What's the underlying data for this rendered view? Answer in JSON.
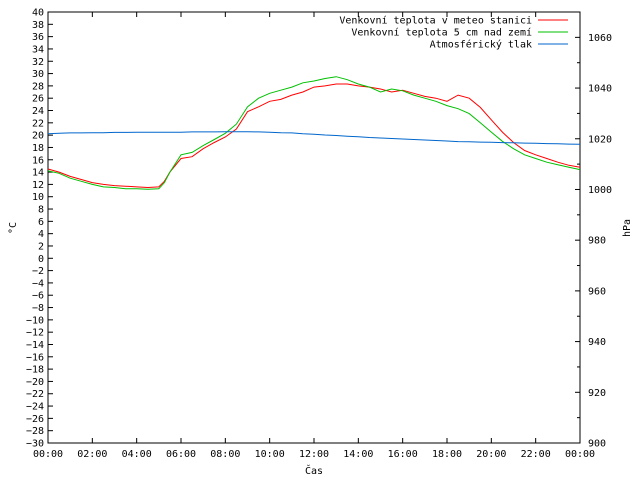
{
  "chart_data": {
    "type": "line",
    "title": "",
    "xlabel": "Čas",
    "ylabel_left": "°C",
    "ylabel_right": "hPa",
    "xlim": [
      "00:00",
      "24:00"
    ],
    "ylim_left": [
      -30,
      40
    ],
    "ylim_right": [
      900,
      1070
    ],
    "x_ticks": [
      "00:00",
      "02:00",
      "04:00",
      "06:00",
      "08:00",
      "10:00",
      "12:00",
      "14:00",
      "16:00",
      "18:00",
      "20:00",
      "22:00",
      "00:00"
    ],
    "y_ticks_left": [
      "40",
      "38",
      "36",
      "34",
      "32",
      "30",
      "28",
      "26",
      "24",
      "22",
      "20",
      "18",
      "16",
      "14",
      "12",
      "10",
      "8",
      "6",
      "4",
      "2",
      "0",
      "−2",
      "−4",
      "−6",
      "−8",
      "−10",
      "−12",
      "−14",
      "−16",
      "−18",
      "−20",
      "−22",
      "−24",
      "−26",
      "−28",
      "−30"
    ],
    "y_ticks_right": [
      "1060",
      "1040",
      "1020",
      "1000",
      "980",
      "960",
      "940",
      "920",
      "900"
    ],
    "grid": false,
    "legend_position": "top-right",
    "x_hours": [
      0,
      0.5,
      1,
      1.5,
      2,
      2.5,
      3,
      3.5,
      4,
      4.5,
      5,
      5.25,
      5.5,
      6,
      6.5,
      7,
      7.5,
      8,
      8.5,
      9,
      9.5,
      10,
      10.5,
      11,
      11.5,
      12,
      12.5,
      13,
      13.5,
      14,
      14.5,
      15,
      15.5,
      16,
      16.5,
      17,
      17.5,
      18,
      18.5,
      19,
      19.5,
      20,
      20.5,
      21,
      21.5,
      22,
      22.5,
      23,
      23.5,
      24
    ],
    "series": [
      {
        "name": "Venkovní teplota v meteo stanici",
        "axis": "left",
        "color": "#ff0000",
        "values": [
          14.5,
          14.0,
          13.3,
          12.8,
          12.3,
          12.0,
          11.8,
          11.7,
          11.6,
          11.5,
          11.6,
          12.5,
          14.0,
          16.2,
          16.5,
          17.8,
          18.8,
          19.7,
          21.0,
          23.8,
          24.6,
          25.5,
          25.8,
          26.5,
          27.0,
          27.8,
          28.0,
          28.3,
          28.3,
          28.0,
          27.8,
          27.5,
          27.0,
          27.3,
          26.8,
          26.3,
          26.0,
          25.5,
          26.5,
          26.0,
          24.5,
          22.5,
          20.5,
          18.8,
          17.5,
          16.8,
          16.2,
          15.6,
          15.1,
          14.8
        ]
      },
      {
        "name": "Venkovní teplota 5 cm nad zemí",
        "axis": "left",
        "color": "#00c000",
        "values": [
          14.2,
          13.8,
          13.0,
          12.5,
          12.0,
          11.6,
          11.5,
          11.3,
          11.3,
          11.2,
          11.3,
          12.3,
          14.0,
          16.8,
          17.2,
          18.3,
          19.3,
          20.3,
          21.8,
          24.6,
          26.0,
          26.8,
          27.3,
          27.8,
          28.5,
          28.8,
          29.2,
          29.5,
          29.0,
          28.3,
          27.8,
          27.0,
          27.5,
          27.2,
          26.5,
          26.0,
          25.5,
          24.8,
          24.3,
          23.5,
          22.0,
          20.5,
          19.0,
          17.8,
          16.8,
          16.2,
          15.6,
          15.2,
          14.8,
          14.4
        ]
      },
      {
        "name": "Atmosférický tlak",
        "axis": "right",
        "color": "#0066cc",
        "values": [
          1022.0,
          1022.2,
          1022.3,
          1022.3,
          1022.4,
          1022.4,
          1022.5,
          1022.5,
          1022.6,
          1022.6,
          1022.6,
          1022.6,
          1022.6,
          1022.6,
          1022.7,
          1022.7,
          1022.7,
          1022.8,
          1022.8,
          1022.8,
          1022.7,
          1022.6,
          1022.4,
          1022.3,
          1022.0,
          1021.8,
          1021.5,
          1021.3,
          1021.0,
          1020.8,
          1020.5,
          1020.3,
          1020.1,
          1019.9,
          1019.7,
          1019.5,
          1019.3,
          1019.1,
          1018.9,
          1018.8,
          1018.7,
          1018.6,
          1018.5,
          1018.4,
          1018.3,
          1018.2,
          1018.1,
          1018.0,
          1017.9,
          1017.8
        ]
      }
    ]
  }
}
